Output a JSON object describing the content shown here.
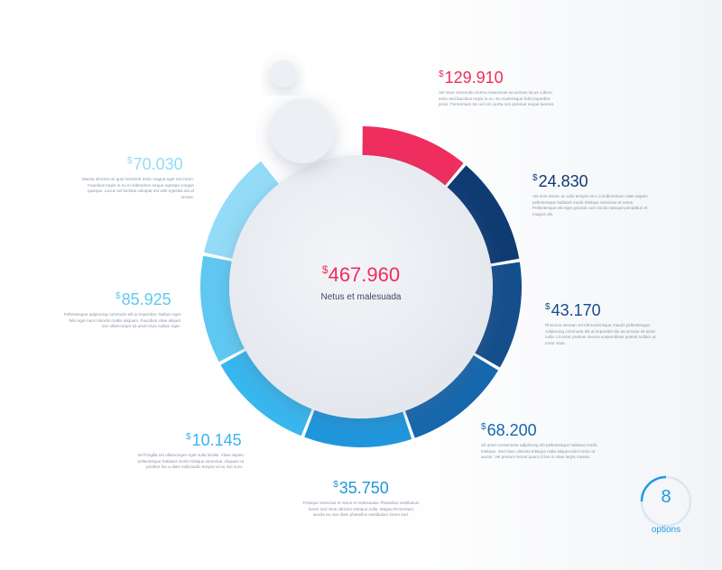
{
  "chart_data": {
    "type": "donut",
    "total_label": "467.960",
    "currency_symbol": "$",
    "center_subtitle": "Netus et malesuada",
    "colors": [
      "#ef2d5e",
      "#0f3b73",
      "#144e8c",
      "#1667ad",
      "#1a7fc7",
      "#1f96dc",
      "#38b6ee",
      "#5fc8f2",
      "#93dbf7"
    ],
    "segments": [
      {
        "label": "129.910",
        "value": 129910,
        "color": "#ef2d5e",
        "desc": "Vel risus commodo viverra maecenas accumsan lacus. Libero enim sed faucibus turpis in eu. Eu scelerisque felis imperdiet proin. Fermentum leo vel orci porta non pulvinar neque laoreet."
      },
      {
        "label": "24.830",
        "value": 24830,
        "color": "#0f3b73",
        "desc": "Vel eros donec ac odio tempor orci. Condimentum vitae sapien pellentesque habitant morbi tristique senectus et netus. Pellentesque elit eget gravida cum sociis natoque penatibus et magnis dis."
      },
      {
        "label": "43.170",
        "value": 43170,
        "color": "#144e8c",
        "desc": "Rhoncus aenean vel elit scelerisque mauris pellentesque. Adipiscing commodo elit at imperdiet dui accumsan sit amet nulla. Ut tortor pretium viverra suspendisse potenti nullam ac tortor vitae."
      },
      {
        "label": "68.200",
        "value": 68200,
        "color": "#1667ad",
        "desc": "Sit amet consectetur adipiscing elit pellentesque habitant morbi tristique. Sed risus ultricies tristique nulla aliquet enim tortor at auctor. Vel pretium lectus quam id leo in vitae turpis massa."
      },
      {
        "label": "35.750",
        "value": 35750,
        "color": "#1f96dc",
        "desc": "Tristique senectus et netus et malesuada. Phasellus vestibulum lorem sed risus ultricies tristique nulla. Magna fermentum iaculis eu non diam phasellus vestibulum lorem sed."
      },
      {
        "label": "10.145",
        "value": 10145,
        "color": "#38b6ee",
        "desc": "Vel fringilla est ullamcorper eget nulla facilisi. Vitae sapien pellentesque habitant morbi tristique senectus. Aliquam ut porttitor leo a diam sollicitudin tempor id eu nisl nunc."
      },
      {
        "label": "85.925",
        "value": 85925,
        "color": "#5fc8f2",
        "desc": "Pellentesque adipiscing commodo elit at imperdiet. Nullam eget felis eget nunc lobortis mattis aliquam. Faucibus vitae aliquet nec ullamcorper sit amet risus nullam eget."
      },
      {
        "label": "70.030",
        "value": 70030,
        "color": "#93dbf7",
        "desc": "Massa ultricies mi quis hendrerit dolor magna eget est lorem. Faucibus turpis in eu mi bibendum neque egestas congue quisque. Lacus vel facilisis volutpat est velit egestas dui id ornare."
      }
    ],
    "options_count": "8",
    "options_label": "options"
  }
}
